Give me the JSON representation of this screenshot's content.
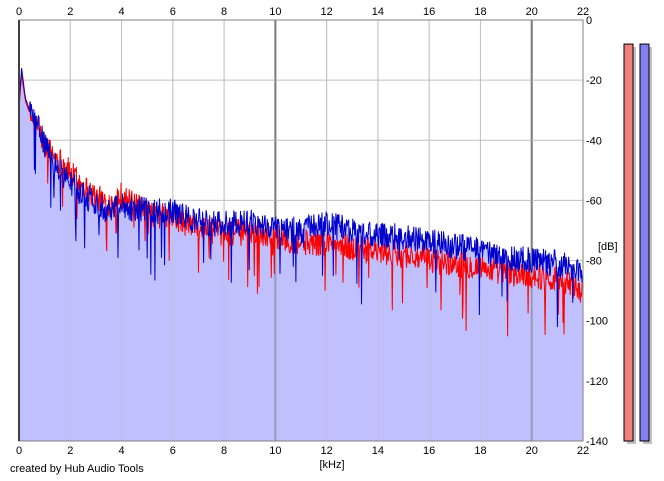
{
  "credit": "created by Hub Audio Tools",
  "colors": {
    "background": "#ffffff",
    "grid_minor": "#c0c0c0",
    "grid_major": "#808080",
    "fill": "#c0c0ff",
    "series_red": "#ff0000",
    "series_blue": "#0000cc",
    "meter_red_fill": "#f08080",
    "meter_blue_fill": "#8080f0",
    "meter_shadow": "#c0c0c0"
  },
  "chart_data": {
    "type": "line",
    "xlabel": "[kHz]",
    "ylabel": "[dB]",
    "xlim": [
      0,
      22
    ],
    "ylim": [
      -140,
      0
    ],
    "x_ticks": [
      0,
      2,
      4,
      6,
      8,
      10,
      12,
      14,
      16,
      18,
      20,
      22
    ],
    "x_tick_labels": [
      "0",
      "2",
      "4",
      "6",
      "8",
      "10",
      "12",
      "14",
      "16",
      "18",
      "20",
      "22"
    ],
    "y_ticks": [
      0,
      -20,
      -40,
      -60,
      -80,
      -100,
      -120,
      -140
    ],
    "y_tick_labels": [
      "0",
      "-20",
      "-40",
      "-60",
      "-80",
      "-100",
      "-120",
      "-140"
    ],
    "grid": true,
    "series": [
      {
        "color": "#ff0000",
        "x": [
          0,
          0.1,
          0.25,
          0.5,
          0.75,
          1.0,
          1.25,
          1.5,
          1.75,
          2.0,
          2.5,
          3.0,
          3.5,
          4.0,
          4.5,
          5.0,
          6.0,
          7.0,
          8.0,
          9.0,
          10.0,
          11.0,
          12.0,
          13.0,
          14.0,
          15.0,
          16.0,
          17.0,
          18.0,
          19.0,
          20.0,
          21.0,
          22.0
        ],
        "values": [
          -30,
          -18,
          -27,
          -33,
          -36,
          -42,
          -44,
          -46,
          -48,
          -51,
          -55,
          -59,
          -61,
          -58,
          -62,
          -64,
          -66,
          -69,
          -71,
          -70,
          -72,
          -74,
          -74,
          -76,
          -77,
          -78,
          -80,
          -81,
          -82,
          -84,
          -85,
          -86,
          -90
        ]
      },
      {
        "color": "#0000cc",
        "x": [
          0,
          0.1,
          0.25,
          0.5,
          0.75,
          1.0,
          1.25,
          1.5,
          1.75,
          2.0,
          2.5,
          3.0,
          3.5,
          4.0,
          4.5,
          5.0,
          6.0,
          7.0,
          8.0,
          9.0,
          10.0,
          11.0,
          12.0,
          13.0,
          14.0,
          15.0,
          16.0,
          17.0,
          18.0,
          19.0,
          20.0,
          21.0,
          22.0
        ],
        "values": [
          -28,
          -16,
          -26,
          -32,
          -36,
          -41,
          -47,
          -49,
          -52,
          -54,
          -58,
          -61,
          -63,
          -61,
          -63,
          -63,
          -64,
          -67,
          -68,
          -67,
          -69,
          -70,
          -68,
          -70,
          -72,
          -72,
          -74,
          -75,
          -77,
          -79,
          -80,
          -81,
          -84
        ]
      }
    ],
    "meters": [
      {
        "color": "#f08080",
        "level_db": -8
      },
      {
        "color": "#8080f0",
        "level_db": -8
      }
    ]
  }
}
